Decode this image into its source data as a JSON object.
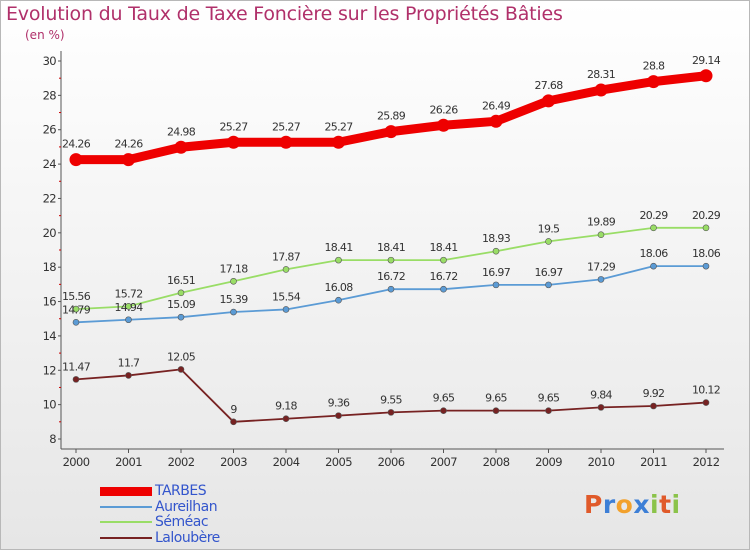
{
  "title": "Evolution du Taux de Taxe Foncière sur les Propriétés Bâties",
  "subtitle": "(en %)",
  "logo": {
    "text": "Proxiti",
    "colors": [
      "#e05a2a",
      "#3d7fd6",
      "#f2a12c",
      "#3d7fd6",
      "#8bc34a",
      "#e05a2a",
      "#8bc34a"
    ]
  },
  "chart_data": {
    "type": "line",
    "title": "Evolution du Taux de Taxe Foncière sur les Propriétés Bâties",
    "ylabel": "(en %)",
    "xlabel": "",
    "ylim": [
      8,
      30
    ],
    "yticks": [
      8,
      10,
      12,
      14,
      16,
      18,
      20,
      22,
      24,
      26,
      28,
      30
    ],
    "categories": [
      "2000",
      "2001",
      "2002",
      "2003",
      "2004",
      "2005",
      "2006",
      "2007",
      "2008",
      "2009",
      "2010",
      "2011",
      "2012"
    ],
    "series": [
      {
        "name": "TARBES",
        "color": "#ee0000",
        "values": [
          24.26,
          24.26,
          24.98,
          25.27,
          25.27,
          25.27,
          25.89,
          26.26,
          26.49,
          27.68,
          28.31,
          28.8,
          29.14
        ],
        "labels": [
          "24.26",
          "24.26",
          "24.98",
          "25.27",
          "25.27",
          "25.27",
          "25.89",
          "26.26",
          "26.49",
          "27.68",
          "28.31",
          "28.8",
          "29.14"
        ]
      },
      {
        "name": "Aureilhan",
        "color": "#5b9bd5",
        "values": [
          14.79,
          14.94,
          15.09,
          15.39,
          15.54,
          16.08,
          16.72,
          16.72,
          16.97,
          16.97,
          17.29,
          18.06,
          18.06
        ],
        "labels": [
          "14.79",
          "14.94",
          "15.09",
          "15.39",
          "15.54",
          "16.08",
          "16.72",
          "16.72",
          "16.97",
          "16.97",
          "17.29",
          "18.06",
          "18.06"
        ]
      },
      {
        "name": "Séméac",
        "color": "#99dd66",
        "values": [
          15.56,
          15.72,
          16.51,
          17.18,
          17.87,
          18.41,
          18.41,
          18.41,
          18.93,
          19.5,
          19.89,
          20.29,
          20.29
        ],
        "labels": [
          "15.56",
          "15.72",
          "16.51",
          "17.18",
          "17.87",
          "18.41",
          "18.41",
          "18.41",
          "18.93",
          "19.5",
          "19.89",
          "20.29",
          "20.29"
        ]
      },
      {
        "name": "Laloubère",
        "color": "#772222",
        "values": [
          11.47,
          11.7,
          12.05,
          9,
          9.18,
          9.36,
          9.55,
          9.65,
          9.65,
          9.65,
          9.84,
          9.92,
          10.12
        ],
        "labels": [
          "11.47",
          "11.7",
          "12.05",
          "9",
          "9.18",
          "9.36",
          "9.55",
          "9.65",
          "9.65",
          "9.65",
          "9.84",
          "9.92",
          "10.12"
        ]
      }
    ],
    "grid": false,
    "legend_position": "bottom-left"
  }
}
